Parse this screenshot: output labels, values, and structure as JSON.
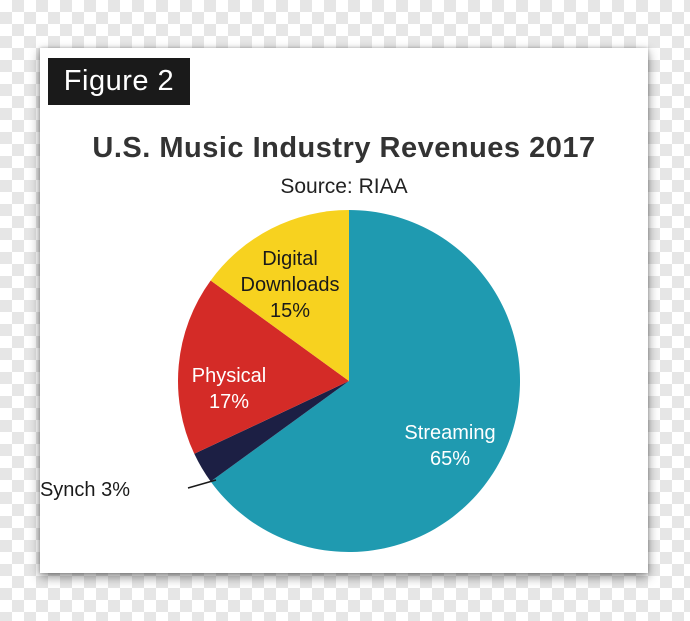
{
  "figure_label": "Figure 2",
  "chart_data": {
    "type": "pie",
    "title": "U.S. Music Industry Revenues 2017",
    "subtitle": "Source: RIAA",
    "slices": [
      {
        "name": "Streaming",
        "value": 65,
        "label_lines": [
          "Streaming",
          "65%"
        ],
        "color": "#1f9ab0",
        "label_color": "#ffffff"
      },
      {
        "name": "Synch",
        "value": 3,
        "label_lines": [
          "Synch 3%"
        ],
        "color": "#1c1f44",
        "label_color": "#1a1a1a"
      },
      {
        "name": "Physical",
        "value": 17,
        "label_lines": [
          "Physical",
          "17%"
        ],
        "color": "#d42b27",
        "label_color": "#ffffff"
      },
      {
        "name": "Digital Downloads",
        "value": 15,
        "label_lines": [
          "Digital",
          "Downloads",
          "15%"
        ],
        "color": "#f7d21f",
        "label_color": "#1a1a1a"
      }
    ]
  }
}
